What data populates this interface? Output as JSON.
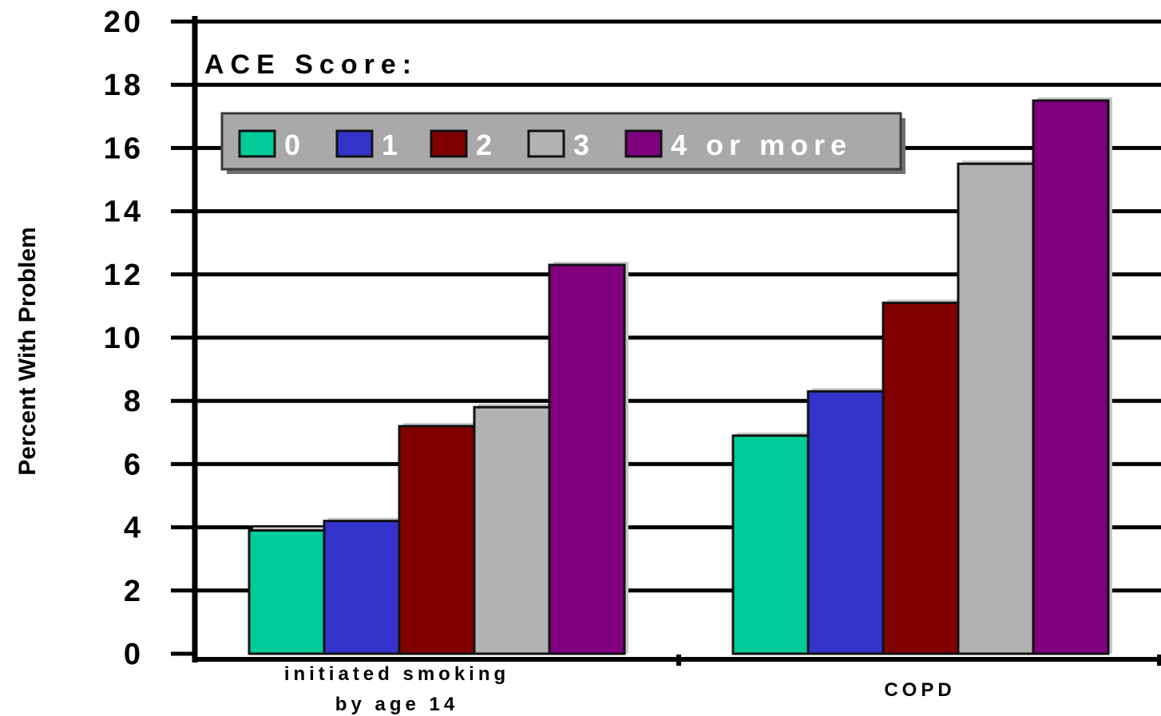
{
  "chart_data": {
    "type": "bar",
    "ylabel": "Percent With Problem",
    "legend_title": "ACE Score:",
    "legend_placement": "top-left",
    "ylim": [
      0,
      20
    ],
    "yticks": [
      0,
      2,
      4,
      6,
      8,
      10,
      12,
      14,
      16,
      18,
      20
    ],
    "grid": true,
    "categories": [
      {
        "lines": [
          "initiated smoking",
          "by age 14"
        ]
      },
      {
        "lines": [
          "COPD"
        ]
      }
    ],
    "series": [
      {
        "name": "0",
        "color": "#00cc99",
        "values": [
          3.9,
          6.9
        ]
      },
      {
        "name": "1",
        "color": "#3333cc",
        "values": [
          4.2,
          8.3
        ]
      },
      {
        "name": "2",
        "color": "#800000",
        "values": [
          7.2,
          11.1
        ]
      },
      {
        "name": "3",
        "color": "#b2b2b2",
        "values": [
          7.8,
          15.5
        ]
      },
      {
        "name": "4 or more",
        "color": "#800080",
        "values": [
          12.3,
          17.5
        ]
      }
    ]
  }
}
